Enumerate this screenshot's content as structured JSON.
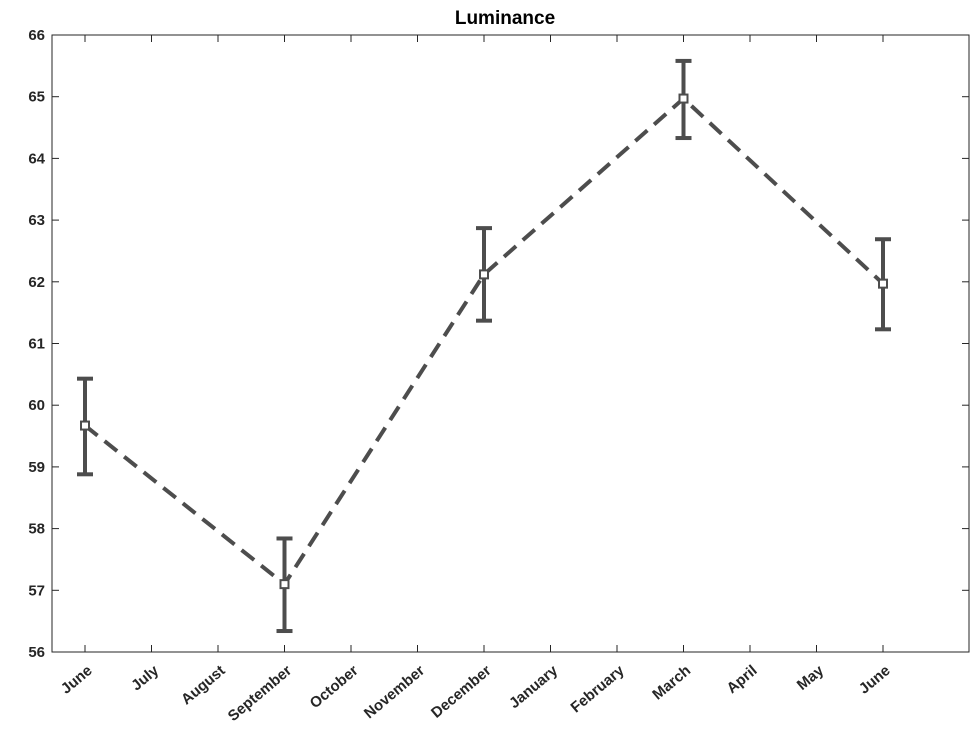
{
  "chart_data": {
    "type": "line",
    "title": "Luminance",
    "xlabel": "",
    "ylabel": "",
    "categories": [
      "June",
      "July",
      "August",
      "September",
      "October",
      "November",
      "December",
      "January",
      "February",
      "March",
      "April",
      "May",
      "June"
    ],
    "yticks": [
      "56",
      "57",
      "58",
      "59",
      "60",
      "61",
      "62",
      "63",
      "64",
      "65",
      "66"
    ],
    "ylim": [
      56,
      66
    ],
    "grid": false,
    "series": [
      {
        "points": [
          {
            "x": "June",
            "y": 59.67,
            "err_low": 58.88,
            "err_high": 60.43
          },
          {
            "x": "September",
            "y": 57.1,
            "err_low": 56.34,
            "err_high": 57.84
          },
          {
            "x": "December",
            "y": 62.12,
            "err_low": 61.37,
            "err_high": 62.87
          },
          {
            "x": "March",
            "y": 64.97,
            "err_low": 64.33,
            "err_high": 65.58
          },
          {
            "x": "June",
            "y": 61.97,
            "err_low": 61.23,
            "err_high": 62.69
          }
        ],
        "point_index": [
          0,
          3,
          6,
          9,
          12
        ],
        "line_style": "dashed",
        "marker": "square",
        "color": "#4d4d4d"
      }
    ]
  }
}
